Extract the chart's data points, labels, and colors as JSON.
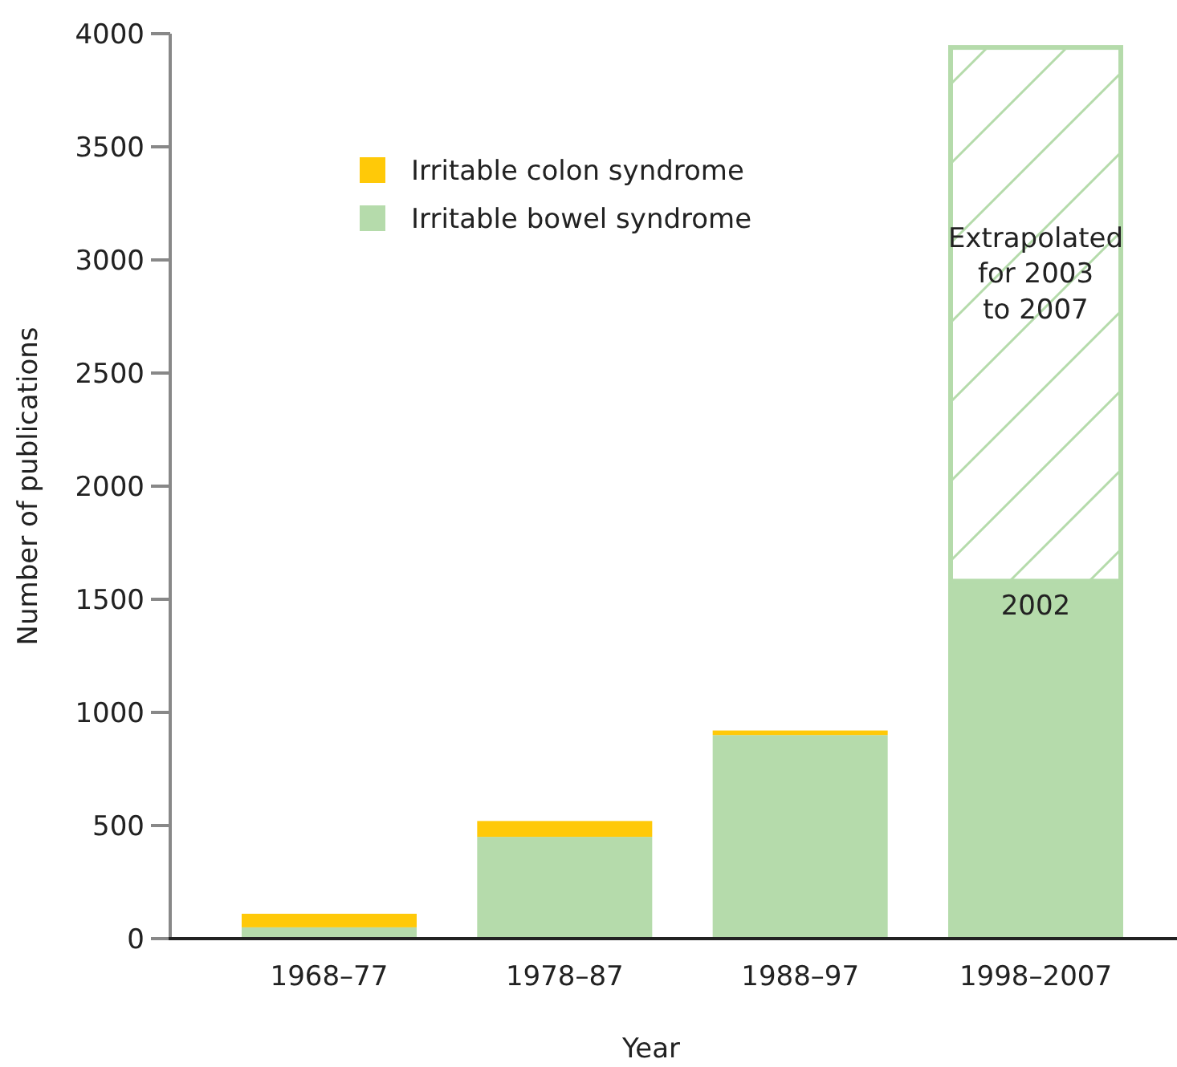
{
  "chart_data": {
    "type": "bar",
    "stacked": true,
    "xlabel": "Year",
    "ylabel": "Number of publications",
    "categories": [
      "1968–77",
      "1978–87",
      "1988–97",
      "1998–2007"
    ],
    "series": [
      {
        "name": "Irritable bowel syndrome",
        "color": "#b5dbab",
        "values": [
          50,
          450,
          900,
          1580
        ]
      },
      {
        "name": "Irritable colon syndrome",
        "color": "#ffc908",
        "values": [
          60,
          70,
          20,
          null
        ]
      },
      {
        "color": "#b5dbab",
        "values": [
          null,
          null,
          null,
          2370
        ]
      }
    ],
    "ylim": [
      0,
      4000
    ],
    "yticks": [
      0,
      500,
      1000,
      1500,
      2000,
      2500,
      3000,
      3500,
      4000
    ],
    "legend": "top left",
    "grid": false,
    "annotations": [
      "Extrapolated\nfor 2003\nto 2007",
      "2002"
    ]
  }
}
